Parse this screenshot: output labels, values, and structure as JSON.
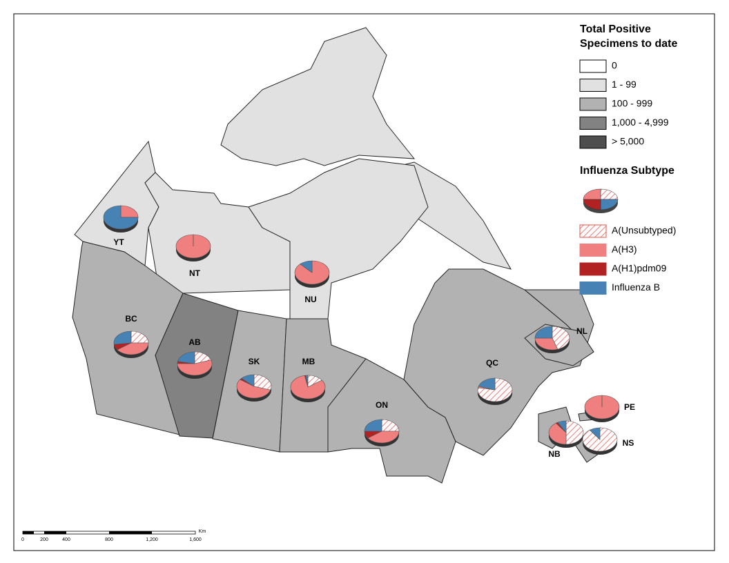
{
  "legend_total": {
    "title": "Total Positive Specimens to date",
    "classes": [
      {
        "label": "0",
        "color": "#ffffff"
      },
      {
        "label": "1 - 99",
        "color": "#e1e1e1"
      },
      {
        "label": "100 - 999",
        "color": "#b2b2b2"
      },
      {
        "label": "1,000 - 4,999",
        "color": "#828282"
      },
      {
        "label": "> 5,000",
        "color": "#4e4e4e"
      }
    ]
  },
  "legend_subtype": {
    "title": "Influenza Subtype",
    "items": [
      {
        "label": "A(Unsubtyped)",
        "color": "#e8504a",
        "hatched": true
      },
      {
        "label": "A(H3)",
        "color": "#f08080"
      },
      {
        "label": "A(H1)pdm09",
        "color": "#b22222"
      },
      {
        "label": "Influenza B",
        "color": "#4682b4"
      }
    ]
  },
  "provinces": [
    {
      "label": "YT",
      "class": 1,
      "pie": [
        0,
        25,
        0,
        75
      ]
    },
    {
      "label": "NT",
      "class": 1,
      "pie": [
        0,
        100,
        0,
        0
      ]
    },
    {
      "label": "NU",
      "class": 1,
      "pie": [
        0,
        88,
        0,
        12
      ]
    },
    {
      "label": "BC",
      "class": 2,
      "pie": [
        25,
        40,
        8,
        27
      ]
    },
    {
      "label": "AB",
      "class": 3,
      "pie": [
        20,
        55,
        3,
        22
      ]
    },
    {
      "label": "SK",
      "class": 2,
      "pie": [
        30,
        55,
        2,
        13
      ]
    },
    {
      "label": "MB",
      "class": 2,
      "pie": [
        15,
        82,
        1,
        2
      ]
    },
    {
      "label": "ON",
      "class": 2,
      "pie": [
        25,
        40,
        10,
        25
      ]
    },
    {
      "label": "QC",
      "class": 2,
      "pie": [
        78,
        2,
        0,
        20
      ]
    },
    {
      "label": "NL",
      "class": 2,
      "pie": [
        45,
        30,
        0,
        25
      ]
    },
    {
      "label": "PE",
      "class": 2,
      "pie": [
        0,
        100,
        0,
        0
      ]
    },
    {
      "label": "NB",
      "class": 2,
      "pie": [
        50,
        40,
        2,
        8
      ]
    },
    {
      "label": "NS",
      "class": 2,
      "pie": [
        90,
        0,
        0,
        10
      ]
    }
  ],
  "scale": {
    "labels": [
      "0",
      "200",
      "400",
      "800",
      "1,200",
      "1,600"
    ],
    "unit": "Km"
  }
}
